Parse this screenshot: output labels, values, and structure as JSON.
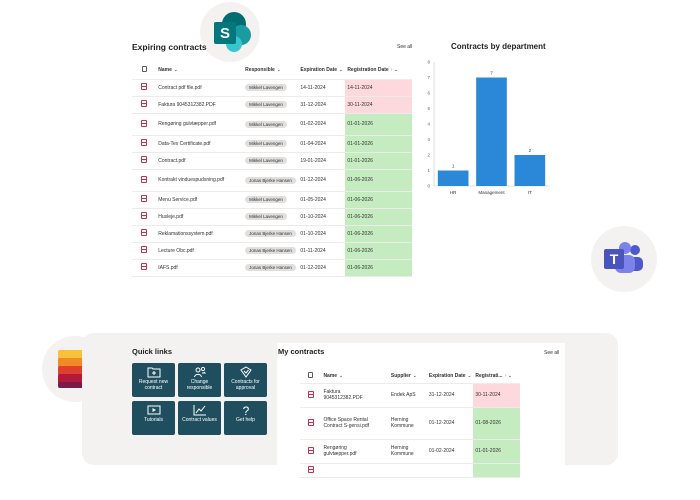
{
  "expiring": {
    "title": "Expiring contracts",
    "see_all": "See all",
    "columns": [
      "Name",
      "Responsible",
      "Expiration Date",
      "Registration Date"
    ],
    "rows": [
      {
        "name": "Contract pdf file.pdf",
        "responsible": "Mikkel Lavengen",
        "expiration": "14-11-2024",
        "registration": "14-11-2024",
        "status": "red"
      },
      {
        "name": "Faktura 9045312382.PDF",
        "responsible": "Mikkel Lavengen",
        "expiration": "31-12-2024",
        "registration": "30-11-2024",
        "status": "red"
      },
      {
        "name": "Rengøring gulvtæpper.pdf",
        "responsible": "Mikkel Lavengen",
        "expiration": "01-02-2024",
        "registration": "01-01-2026",
        "status": "green"
      },
      {
        "name": "Data-Tex Certificate.pdf",
        "responsible": "Mikkel Lavengen",
        "expiration": "01-04-2024",
        "registration": "01-01-2026",
        "status": "green"
      },
      {
        "name": "Contract.pdf",
        "responsible": "Mikkel Lavengen",
        "expiration": "19-01-2024",
        "registration": "01-01-2026",
        "status": "green"
      },
      {
        "name": "Kontrakt vinduespudsning.pdf",
        "responsible": "Jonas Bjerke Hansen",
        "expiration": "01-12-2024",
        "registration": "01-06-2026",
        "status": "green"
      },
      {
        "name": "Menu Service.pdf",
        "responsible": "Mikkel Lavengen",
        "expiration": "01-05-2024",
        "registration": "01-06-2026",
        "status": "green"
      },
      {
        "name": "Husleje.pdf",
        "responsible": "Mikkel Lavengen",
        "expiration": "01-10-2024",
        "registration": "01-06-2026",
        "status": "green"
      },
      {
        "name": "Reklamationssystem.pdf",
        "responsible": "Jonas Bjerke Hansen",
        "expiration": "01-10-2024",
        "registration": "01-06-2026",
        "status": "green"
      },
      {
        "name": "Lecture Obc.pdf",
        "responsible": "Jonas Bjerke Hansen",
        "expiration": "01-11-2024",
        "registration": "01-06-2026",
        "status": "green"
      },
      {
        "name": "IAFS.pdf",
        "responsible": "Jonas Bjerke Hansen",
        "expiration": "01-12-2024",
        "registration": "01-06-2026",
        "status": "green"
      }
    ]
  },
  "colors": {
    "red_status": "#fdd8dc",
    "green_status": "#c4ecc0",
    "bar": "#2b88d8",
    "tile": "#1f4f5f",
    "panel": "#f3f2f1"
  },
  "chart_data": {
    "type": "bar",
    "title": "Contracts by department",
    "categories": [
      "HR",
      "Management",
      "IT"
    ],
    "values": [
      1,
      7,
      2
    ],
    "ylim": [
      0,
      8
    ],
    "yticks": [
      0,
      1,
      2,
      3,
      4,
      5,
      6,
      7,
      8
    ],
    "xlabel": "",
    "ylabel": "",
    "grid": false,
    "data_labels": true,
    "legend": "none"
  },
  "quick_links": {
    "title": "Quick links",
    "tiles": [
      {
        "label": "Request new contract",
        "icon": "folder-add-icon"
      },
      {
        "label": "Change responsible",
        "icon": "people-swap-icon"
      },
      {
        "label": "Contracts for approval",
        "icon": "approval-icon"
      },
      {
        "label": "Tutorials",
        "icon": "video-icon"
      },
      {
        "label": "Contract values",
        "icon": "line-chart-icon"
      },
      {
        "label": "Get help",
        "icon": "question-icon"
      }
    ]
  },
  "my_contracts": {
    "title": "My contracts",
    "see_all": "See all",
    "columns": [
      "Name",
      "Supplier",
      "Expiration Date",
      "Registrati..."
    ],
    "rows": [
      {
        "name": "Faktura 9045312382.PDF",
        "supplier": "Endek ApS",
        "expiration": "31-12-2024",
        "registration": "30-11-2024",
        "status": "red"
      },
      {
        "name": "Office Space Rental Contract S-gensi.pdf",
        "supplier": "Herning Kommune",
        "expiration": "01-12-2024",
        "registration": "01-08-2026",
        "status": "green"
      },
      {
        "name": "Rengøring gulvtæpper.pdf",
        "supplier": "Herning Kommune",
        "expiration": "01-02-2024",
        "registration": "01-01-2026",
        "status": "green"
      },
      {
        "name": "",
        "supplier": "",
        "expiration": "",
        "registration": "",
        "status": "green"
      }
    ]
  }
}
